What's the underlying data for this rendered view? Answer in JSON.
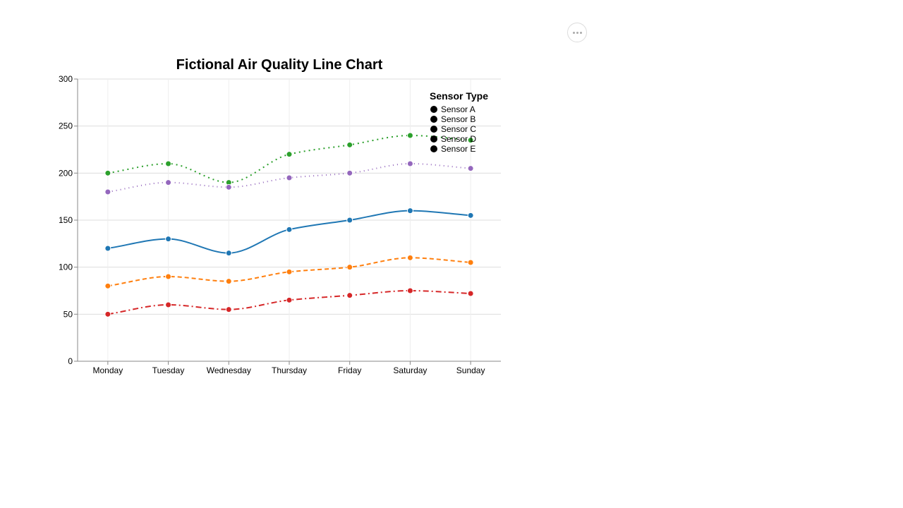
{
  "chart_data": {
    "type": "line",
    "title": "Fictional Air Quality Line Chart",
    "xlabel": "",
    "ylabel": "",
    "categories": [
      "Monday",
      "Tuesday",
      "Wednesday",
      "Thursday",
      "Friday",
      "Saturday",
      "Sunday"
    ],
    "ylim": [
      0,
      300
    ],
    "yticks": [
      "0",
      "50",
      "100",
      "150",
      "200",
      "250",
      "300"
    ],
    "grid": true,
    "legend": {
      "title": "Sensor Type",
      "position": "top-right",
      "marker_color": "#000000"
    },
    "series": [
      {
        "name": "Sensor A",
        "color": "#1f77b4",
        "dash": "solid",
        "values": [
          120,
          130,
          115,
          140,
          150,
          160,
          155
        ]
      },
      {
        "name": "Sensor B",
        "color": "#ff7f0e",
        "dash": "dashed",
        "values": [
          80,
          90,
          85,
          95,
          100,
          110,
          105
        ]
      },
      {
        "name": "Sensor C",
        "color": "#2ca02c",
        "dash": "dotted",
        "values": [
          200,
          210,
          190,
          220,
          230,
          240,
          235
        ]
      },
      {
        "name": "Sensor D",
        "color": "#d62728",
        "dash": "dashdot",
        "values": [
          50,
          60,
          55,
          65,
          70,
          75,
          72
        ]
      },
      {
        "name": "Sensor E",
        "color": "#9467bd",
        "dash": "sparse-dotted",
        "values": [
          180,
          190,
          185,
          195,
          200,
          210,
          205
        ]
      }
    ]
  },
  "toolbar": {
    "menu_icon": "ellipsis-icon"
  }
}
